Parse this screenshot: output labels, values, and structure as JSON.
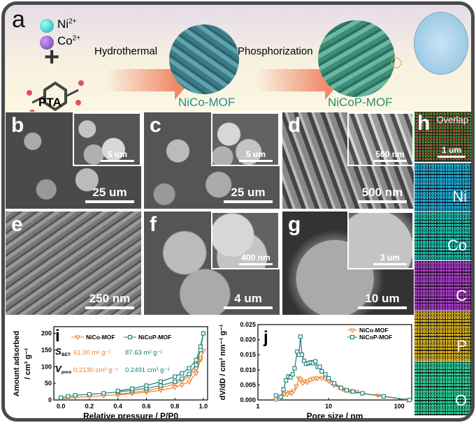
{
  "panel_a": {
    "label": "a",
    "ni": "Ni",
    "ni_sup": "2+",
    "co": "Co",
    "co_sup": "2+",
    "plus": "+",
    "pta": "PTA",
    "step1": "Hydrothermal",
    "step2": "Phosphorization",
    "product1": "NiCo-MOF",
    "product2": "NiCoP-MOF"
  },
  "sem": [
    {
      "label": "b",
      "scale": "25 um",
      "inset_scale": "5 um"
    },
    {
      "label": "c",
      "scale": "25 um",
      "inset_scale": "5 um"
    },
    {
      "label": "d",
      "scale": "500 nm",
      "inset_scale": "500 nm"
    },
    {
      "label": "e",
      "scale": "250 nm"
    },
    {
      "label": "f",
      "scale": "4 um",
      "inset_scale": "400 nm"
    },
    {
      "label": "g",
      "scale": "10 um",
      "inset_scale": "3 um"
    }
  ],
  "mapping": {
    "label": "h",
    "overlap": "Overlap",
    "overlap_scale": "1 um",
    "elements": [
      {
        "name": "Ni",
        "color": "#1fb4e0"
      },
      {
        "name": "Co",
        "color": "#20c8b8"
      },
      {
        "name": "C",
        "color": "#b040d0"
      },
      {
        "name": "P",
        "color": "#e0b820"
      },
      {
        "name": "O",
        "color": "#30d8a0"
      }
    ]
  },
  "colors": {
    "nico": "#f07f2a",
    "nicop": "#177f78"
  },
  "chart_data": [
    {
      "type": "line",
      "panel": "i",
      "xlabel": "Relative pressure / P/P0",
      "ylabel": "Amount adsorbed / cm3 g-1",
      "ylabel1": "Amount adsorbed",
      "ylabel2": "/ cm³ g⁻¹",
      "xlim": [
        -0.05,
        1.03
      ],
      "ylim": [
        0,
        220
      ],
      "xticks": [
        "0.0",
        "0.2",
        "0.4",
        "0.6",
        "0.8",
        "1.0"
      ],
      "yticks": [
        "0",
        "50",
        "100",
        "150",
        "200"
      ],
      "legend_placement": "top",
      "sbet_label": "S",
      "sbet_sub": "BET",
      "vpore_label": "V",
      "vpore_sub": "pore",
      "series": [
        {
          "name": "NiCo-MOF",
          "marker": "triangle-down",
          "sbet": "61.00 m² g⁻¹",
          "vpore": "0.2130 cm³ g⁻¹",
          "x": [
            0,
            0.05,
            0.1,
            0.2,
            0.3,
            0.4,
            0.5,
            0.6,
            0.7,
            0.8,
            0.85,
            0.9,
            0.95,
            0.98,
            1.0,
            0.98,
            0.95,
            0.9,
            0.85,
            0.8,
            0.7,
            0.6,
            0.5,
            0.4
          ],
          "y": [
            3,
            6,
            8,
            10,
            13,
            15,
            19,
            23,
            29,
            38,
            45,
            55,
            80,
            120,
            148,
            125,
            95,
            70,
            58,
            48,
            36,
            28,
            22,
            17
          ]
        },
        {
          "name": "NiCoP-MOF",
          "marker": "square",
          "sbet": "87.63 m² g⁻¹",
          "vpore": "0.2491 cm³ g⁻¹",
          "x": [
            0,
            0.05,
            0.1,
            0.2,
            0.3,
            0.4,
            0.5,
            0.6,
            0.7,
            0.8,
            0.85,
            0.9,
            0.95,
            0.98,
            1.0,
            0.98,
            0.95,
            0.9,
            0.85,
            0.8,
            0.7,
            0.6,
            0.5,
            0.4
          ],
          "y": [
            7,
            11,
            14,
            17,
            20,
            24,
            29,
            35,
            43,
            55,
            64,
            78,
            105,
            150,
            200,
            160,
            120,
            95,
            80,
            70,
            55,
            43,
            34,
            27
          ]
        }
      ]
    },
    {
      "type": "line",
      "panel": "j",
      "xlabel": "Pore size / nm",
      "ylabel": "dV/dD / cm³ nm⁻¹ g⁻¹",
      "xscale": "log",
      "xlim": [
        1,
        150
      ],
      "ylim": [
        0,
        0.025
      ],
      "xticks": [
        {
          "v": 1,
          "t": "1"
        },
        {
          "v": 10,
          "t": "10"
        },
        {
          "v": 100,
          "t": "100"
        }
      ],
      "yticks": [
        "0.000",
        "0.005",
        "0.010",
        "0.015",
        "0.020",
        "0.025"
      ],
      "legend_placement": "top-right",
      "series": [
        {
          "name": "NiCo-MOF",
          "marker": "triangle-down",
          "x": [
            1.8,
            2.0,
            2.2,
            2.4,
            2.6,
            2.8,
            3.0,
            3.2,
            3.5,
            3.8,
            4.0,
            4.3,
            4.6,
            5.0,
            5.5,
            6,
            6.5,
            7,
            8,
            9,
            10,
            11,
            12,
            14,
            16,
            20,
            25,
            30,
            50,
            130
          ],
          "y": [
            0,
            0.0005,
            0.0012,
            0.002,
            0.0018,
            0.0025,
            0.0022,
            0.003,
            0.0045,
            0.0072,
            0.0068,
            0.0055,
            0.0062,
            0.0058,
            0.0066,
            0.007,
            0.0072,
            0.0071,
            0.0072,
            0.0069,
            0.0062,
            0.0056,
            0.0048,
            0.0042,
            0.0035,
            0.003,
            0.0027,
            0.0022,
            0.0015,
            0
          ]
        },
        {
          "name": "NiCoP-MOF",
          "marker": "square",
          "x": [
            1.8,
            2.0,
            2.1,
            2.3,
            2.5,
            2.7,
            2.9,
            3.1,
            3.3,
            3.6,
            3.8,
            4.0,
            4.2,
            4.5,
            4.8,
            5.2,
            5.6,
            6.0,
            6.5,
            7,
            7.5,
            8,
            9,
            10,
            12,
            15,
            18,
            22,
            30,
            60,
            140
          ],
          "y": [
            0.0015,
            0.0005,
            0.001,
            0.0035,
            0.0065,
            0.0078,
            0.0075,
            0.0085,
            0.0105,
            0.016,
            0.015,
            0.021,
            0.015,
            0.013,
            0.012,
            0.0122,
            0.0125,
            0.0122,
            0.0128,
            0.011,
            0.011,
            0.0095,
            0.0085,
            0.0072,
            0.0055,
            0.004,
            0.0032,
            0.0028,
            0.0022,
            0.0012,
            0
          ]
        }
      ]
    }
  ]
}
